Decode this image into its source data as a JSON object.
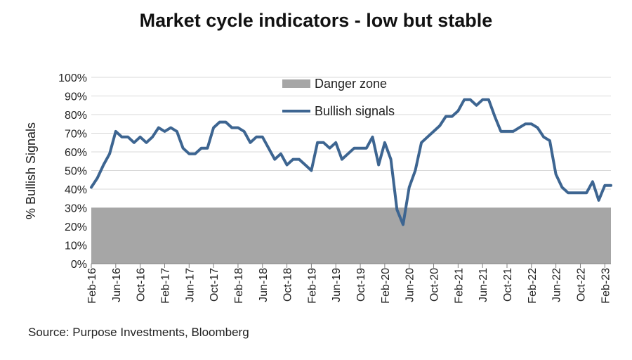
{
  "chart_data": {
    "type": "line",
    "title": "Market cycle indicators - low but stable",
    "ylabel": "% Bullish Signals",
    "xlabel": "",
    "ylim": [
      0,
      100
    ],
    "y_ticks": [
      "0%",
      "10%",
      "20%",
      "30%",
      "40%",
      "50%",
      "60%",
      "70%",
      "80%",
      "90%",
      "100%"
    ],
    "x_ticks": [
      "Feb-16",
      "Jun-16",
      "Oct-16",
      "Feb-17",
      "Jun-17",
      "Oct-17",
      "Feb-18",
      "Jun-18",
      "Oct-18",
      "Feb-19",
      "Jun-19",
      "Oct-19",
      "Feb-20",
      "Jun-20",
      "Oct-20",
      "Feb-21",
      "Jun-21",
      "Oct-21",
      "Feb-22",
      "Jun-22",
      "Oct-22",
      "Feb-23"
    ],
    "x_range": [
      "Feb-16",
      "Apr-23"
    ],
    "legend_position": "top-center",
    "grid": "horizontal",
    "series": [
      {
        "name": "Danger zone",
        "kind": "band",
        "from": 0,
        "to": 30,
        "color": "#a6a6a6"
      },
      {
        "name": "Bullish signals",
        "kind": "line",
        "color": "#3d6591",
        "values": [
          41,
          46,
          53,
          59,
          71,
          68,
          68,
          65,
          68,
          65,
          68,
          73,
          71,
          73,
          71,
          62,
          59,
          59,
          62,
          62,
          73,
          76,
          76,
          73,
          73,
          71,
          65,
          68,
          68,
          62,
          56,
          59,
          53,
          56,
          56,
          53,
          50,
          65,
          65,
          62,
          65,
          56,
          59,
          62,
          62,
          62,
          68,
          53,
          65,
          56,
          29,
          21,
          41,
          50,
          65,
          68,
          71,
          74,
          79,
          79,
          82,
          88,
          88,
          85,
          88,
          88,
          79,
          71,
          71,
          71,
          73,
          75,
          75,
          73,
          68,
          66,
          48,
          41,
          38,
          38,
          38,
          38,
          44,
          34,
          42,
          42
        ]
      }
    ]
  },
  "source": "Source: Purpose Investments, Bloomberg"
}
